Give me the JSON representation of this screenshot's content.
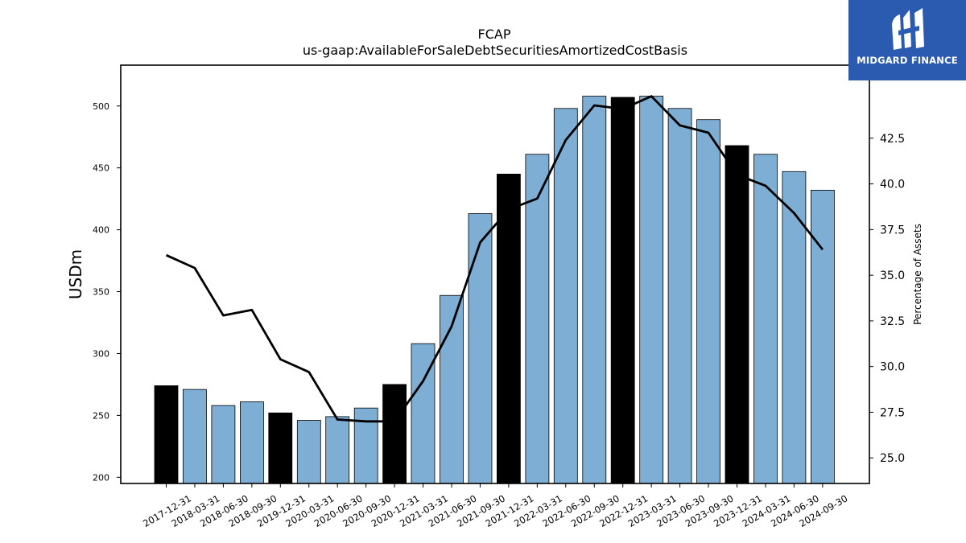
{
  "brand": {
    "name": "MIDGARD FINANCE",
    "bg_color": "#2b5bb0"
  },
  "chart_data": {
    "type": "bar",
    "title": "FCAP",
    "subtitle": "us-gaap:AvailableForSaleDebtSecuritiesAmortizedCostBasis",
    "ylabel": "USDm",
    "y2label": "Percentage of Assets",
    "ylim": [
      195,
      533
    ],
    "y2lim": [
      23.6,
      46.5
    ],
    "yticks": [
      200,
      250,
      300,
      350,
      400,
      450,
      500
    ],
    "y2ticks": [
      25.0,
      27.5,
      30.0,
      32.5,
      35.0,
      37.5,
      40.0,
      42.5
    ],
    "y2tick_labels": [
      "25.0",
      "27.5",
      "30.0",
      "32.5",
      "35.0",
      "37.5",
      "40.0",
      "42.5"
    ],
    "categories": [
      "2017-12-31",
      "2018-03-31",
      "2018-06-30",
      "2018-09-30",
      "2019-12-31",
      "2020-03-31",
      "2020-06-30",
      "2020-09-30",
      "2020-12-31",
      "2021-03-31",
      "2021-06-30",
      "2021-09-30",
      "2021-12-31",
      "2022-03-31",
      "2022-06-30",
      "2022-09-30",
      "2022-12-31",
      "2023-03-31",
      "2023-06-30",
      "2023-09-30",
      "2023-12-31",
      "2024-03-31",
      "2024-06-30",
      "2024-09-30"
    ],
    "series": [
      {
        "type": "bar",
        "axis": "left",
        "values": [
          274,
          271,
          258,
          261,
          252,
          246,
          249,
          256,
          275,
          308,
          347,
          413,
          445,
          461,
          498,
          508,
          507,
          508,
          498,
          489,
          468,
          461,
          447,
          432
        ],
        "highlight": [
          true,
          false,
          false,
          false,
          true,
          false,
          false,
          false,
          true,
          false,
          false,
          false,
          true,
          false,
          false,
          false,
          true,
          false,
          false,
          false,
          true,
          false,
          false,
          false
        ]
      },
      {
        "type": "line",
        "axis": "right",
        "values": [
          36.1,
          35.4,
          32.8,
          33.1,
          30.4,
          29.7,
          27.1,
          27.0,
          27.0,
          29.2,
          32.2,
          36.8,
          38.6,
          39.2,
          42.4,
          44.3,
          44.1,
          44.8,
          43.2,
          42.8,
          40.5,
          39.9,
          38.4,
          36.4
        ]
      }
    ],
    "colors": {
      "bar": "#7eaed3",
      "bar_highlight": "#000000",
      "line": "#000000"
    },
    "grid": false
  }
}
